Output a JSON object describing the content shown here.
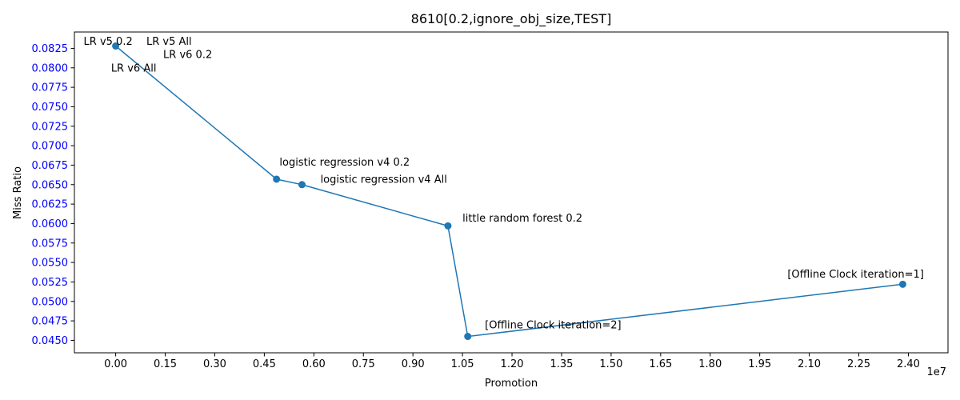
{
  "chart_data": {
    "type": "line",
    "title": "8610[0.2,ignore_obj_size,TEST]",
    "xlabel": "Promotion",
    "ylabel": "Miss Ratio",
    "x_offset_label": "1e7",
    "xlim": [
      -1250000,
      25200000
    ],
    "ylim": [
      0.0434,
      0.0846
    ],
    "xticks": [
      0,
      1500000,
      3000000,
      4500000,
      6000000,
      7500000,
      9000000,
      10500000,
      12000000,
      13500000,
      15000000,
      16500000,
      18000000,
      19500000,
      21000000,
      22500000,
      24000000
    ],
    "xtick_labels": [
      "0.00",
      "0.15",
      "0.30",
      "0.45",
      "0.60",
      "0.75",
      "0.90",
      "1.05",
      "1.20",
      "1.35",
      "1.50",
      "1.65",
      "1.80",
      "1.95",
      "2.10",
      "2.25",
      "2.40"
    ],
    "yticks": [
      0.045,
      0.0475,
      0.05,
      0.0525,
      0.055,
      0.0575,
      0.06,
      0.0625,
      0.065,
      0.0675,
      0.07,
      0.0725,
      0.075,
      0.0775,
      0.08,
      0.0825
    ],
    "ytick_labels": [
      "0.0450",
      "0.0475",
      "0.0500",
      "0.0525",
      "0.0550",
      "0.0575",
      "0.0600",
      "0.0625",
      "0.0650",
      "0.0675",
      "0.0700",
      "0.0725",
      "0.0750",
      "0.0775",
      "0.0800",
      "0.0825"
    ],
    "grid": false,
    "colors": {
      "line": "#1f77b4",
      "ytick_label": "#0000ff",
      "text": "#000000"
    },
    "series": [
      {
        "points": [
          {
            "x": 0,
            "y": 0.0828
          },
          {
            "x": 4870000,
            "y": 0.0657
          },
          {
            "x": 5640000,
            "y": 0.065
          },
          {
            "x": 10060000,
            "y": 0.0597
          },
          {
            "x": 10660000,
            "y": 0.0455
          },
          {
            "x": 23830000,
            "y": 0.0522
          }
        ]
      }
    ],
    "annotations": [
      {
        "text": "LR v5 0.2",
        "x": -970000,
        "y": 0.0834
      },
      {
        "text": "LR v5 All",
        "x": 930000,
        "y": 0.0834
      },
      {
        "text": "LR v6 0.2",
        "x": 1440000,
        "y": 0.0817
      },
      {
        "text": "LR v6 All",
        "x": -140000,
        "y": 0.08
      },
      {
        "text": "logistic regression v4 0.2",
        "x": 4960000,
        "y": 0.0679
      },
      {
        "text": "logistic regression v4 All",
        "x": 6200000,
        "y": 0.0657
      },
      {
        "text": "little random forest 0.2",
        "x": 10500000,
        "y": 0.0607
      },
      {
        "text": "[Offline Clock iteration=2]",
        "x": 11180000,
        "y": 0.047
      },
      {
        "text": "[Offline Clock iteration=1]",
        "x": 20340000,
        "y": 0.0535
      }
    ]
  }
}
